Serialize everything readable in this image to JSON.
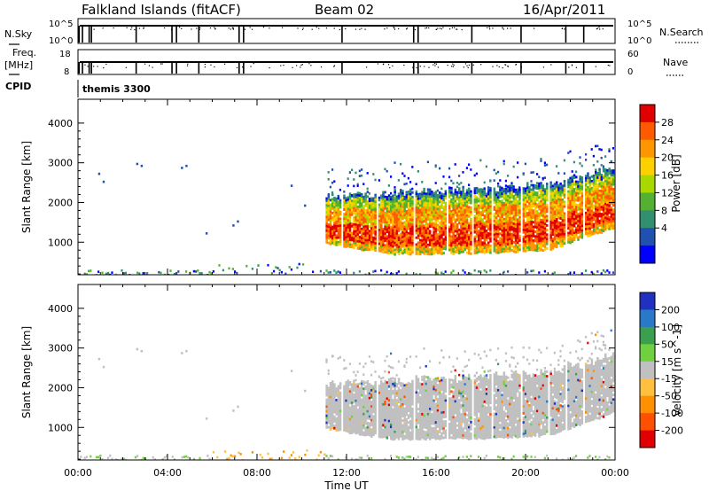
{
  "header": {
    "station": "Falkland Islands (fitACF)",
    "beam": "Beam 02",
    "date": "16/Apr/2011"
  },
  "small_panels": {
    "nsky_label": "N.Sky",
    "nsky_ticks": [
      "10^5",
      "10^0"
    ],
    "nsearch_label": "N.Search",
    "nsearch_ticks": [
      "10^5",
      "10^0"
    ],
    "freq_label": "Freq.",
    "freq_unit": "[MHz]",
    "freq_ticks": [
      "18",
      "8"
    ],
    "nave_label": "Nave",
    "nave_ticks": [
      "60",
      "0"
    ],
    "cpid_label": "CPID",
    "cpid_value": "themis 3300"
  },
  "chart_data": [
    {
      "type": "heatmap",
      "name": "power",
      "xlabel": "Time UT",
      "ylabel": "Slant Range [km]",
      "x_ticks": [
        "00:00",
        "04:00",
        "08:00",
        "12:00",
        "16:00",
        "20:00",
        "00:00"
      ],
      "x_range_hours": [
        0,
        24
      ],
      "y_ticks": [
        1000,
        2000,
        3000,
        4000
      ],
      "y_range_km": [
        180,
        4600
      ],
      "colorbar": {
        "label": "Power [dB]",
        "ticks": [
          "28",
          "24",
          "20",
          "16",
          "12",
          "8",
          "4"
        ],
        "colors": [
          "#e00000",
          "#ff5a00",
          "#ff9600",
          "#ffd000",
          "#a8d800",
          "#54b030",
          "#309070",
          "#2050b0",
          "#0000ff"
        ]
      },
      "echo_region": {
        "main_start_hour": 11.0,
        "main_end_hour": 24.0,
        "lower_edge_km": [
          [
            11.0,
            1000
          ],
          [
            12.5,
            850
          ],
          [
            14.0,
            720
          ],
          [
            18.0,
            740
          ],
          [
            21.0,
            820
          ],
          [
            24.0,
            1400
          ]
        ],
        "upper_edge_km": [
          [
            11.0,
            2150
          ],
          [
            14.0,
            2250
          ],
          [
            18.0,
            2350
          ],
          [
            21.0,
            2450
          ],
          [
            24.0,
            2900
          ]
        ]
      }
    },
    {
      "type": "heatmap",
      "name": "velocity",
      "xlabel": "Time UT",
      "ylabel": "Slant Range [km]",
      "x_ticks": [
        "00:00",
        "04:00",
        "08:00",
        "12:00",
        "16:00",
        "20:00",
        "00:00"
      ],
      "y_ticks": [
        1000,
        2000,
        3000,
        4000
      ],
      "colorbar": {
        "label": "Velocity [m s^-1]",
        "ticks": [
          "200",
          "100",
          "50",
          "15",
          "-15",
          "-50",
          "-100",
          "-200"
        ],
        "colors": [
          "#2030c0",
          "#2a78c8",
          "#3aa050",
          "#70d040",
          "#c0c0c0",
          "#ffc040",
          "#ff9000",
          "#ff5000",
          "#e00000"
        ]
      }
    }
  ]
}
